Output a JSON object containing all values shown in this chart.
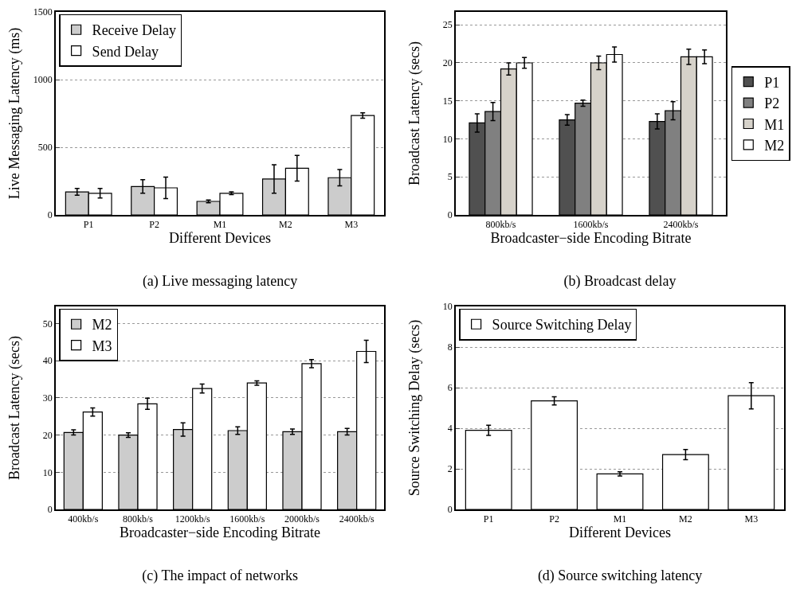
{
  "chart_data": [
    {
      "type": "bar",
      "title": "(a) Live messaging latency",
      "xlabel": "Different Devices",
      "ylabel": "Live Messaging Latency (ms)",
      "categories": [
        "P1",
        "P2",
        "M1",
        "M2",
        "M3"
      ],
      "series": [
        {
          "name": "Receive Delay",
          "color": "#cccccc",
          "values": [
            170,
            210,
            100,
            265,
            275
          ],
          "errors": [
            25,
            50,
            10,
            105,
            60
          ]
        },
        {
          "name": "Send Delay",
          "color": "#ffffff",
          "values": [
            160,
            200,
            160,
            345,
            735
          ],
          "errors": [
            35,
            80,
            10,
            95,
            20
          ]
        }
      ],
      "ylim": [
        0,
        1500
      ],
      "yticks": [
        0,
        500,
        1000,
        1500
      ],
      "grid": "y",
      "legend": "top left"
    },
    {
      "type": "bar",
      "title": "(b) Broadcast delay",
      "xlabel": "Broadcaster−side Encoding Bitrate",
      "ylabel": "Broadcast Latency (secs)",
      "categories": [
        "800kb/s",
        "1600kb/s",
        "2400kb/s"
      ],
      "series": [
        {
          "name": "P1",
          "color": "#505050",
          "values": [
            12.1,
            12.5,
            12.3
          ],
          "errors": [
            1.2,
            0.7,
            1.0
          ]
        },
        {
          "name": "P2",
          "color": "#808080",
          "values": [
            13.6,
            14.7,
            13.7
          ],
          "errors": [
            1.2,
            0.4,
            1.2
          ]
        },
        {
          "name": "M1",
          "color": "#d6d2ca",
          "values": [
            19.2,
            20,
            20.8
          ],
          "errors": [
            0.8,
            0.9,
            1.0
          ]
        },
        {
          "name": "M2",
          "color": "#ffffff",
          "values": [
            20,
            21.1,
            20.8
          ],
          "errors": [
            0.7,
            1.0,
            0.9
          ]
        }
      ],
      "ylim": [
        0,
        26.7
      ],
      "yticks": [
        0,
        5,
        10,
        15,
        20,
        25
      ],
      "grid": "y",
      "legend": "right"
    },
    {
      "type": "bar",
      "title": "(c) The impact of networks",
      "xlabel": "Broadcaster−side Encoding Bitrate",
      "ylabel": "Broadcast Latency (secs)",
      "categories": [
        "400kb/s",
        "800kb/s",
        "1200kb/s",
        "1600kb/s",
        "2000kb/s",
        "2400kb/s"
      ],
      "series": [
        {
          "name": "M2",
          "color": "#cccccc",
          "values": [
            20.7,
            20,
            21.5,
            21.2,
            20.9,
            20.9
          ],
          "errors": [
            0.7,
            0.6,
            1.8,
            1.0,
            0.7,
            0.9
          ]
        },
        {
          "name": "M3",
          "color": "#ffffff",
          "values": [
            26.2,
            28.4,
            32.5,
            34,
            39.2,
            42.5
          ],
          "errors": [
            1.1,
            1.5,
            1.2,
            0.6,
            1.1,
            3
          ]
        }
      ],
      "ylim": [
        0,
        54.6
      ],
      "yticks": [
        0,
        10,
        20,
        30,
        40,
        50
      ],
      "grid": "y",
      "legend": "top left"
    },
    {
      "type": "bar",
      "title": "(d) Source switching latency",
      "xlabel": "Different Devices",
      "ylabel": "Source Switching Delay (secs)",
      "categories": [
        "P1",
        "P2",
        "M1",
        "M2",
        "M3"
      ],
      "series": [
        {
          "name": "Source Switching Delay",
          "color": "#ffffff",
          "values": [
            3.9,
            5.35,
            1.75,
            2.7,
            5.6
          ],
          "errors": [
            0.25,
            0.2,
            0.1,
            0.25,
            0.65
          ]
        }
      ],
      "ylim": [
        0,
        10
      ],
      "yticks": [
        0,
        2,
        4,
        6,
        8,
        10
      ],
      "grid": "y",
      "legend": "top left"
    }
  ]
}
